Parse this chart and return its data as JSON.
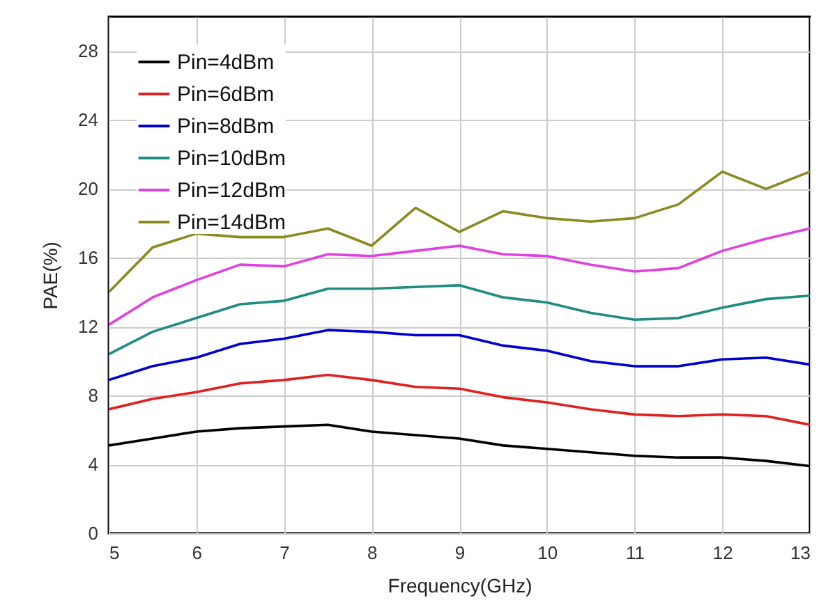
{
  "chart_data": {
    "type": "line",
    "xlabel": "Frequency(GHz)",
    "ylabel": "PAE(%)",
    "x": [
      5,
      5.5,
      6,
      6.5,
      7,
      7.5,
      8,
      8.5,
      9,
      9.5,
      10,
      10.5,
      11,
      11.5,
      12,
      12.5,
      13
    ],
    "series": [
      {
        "name": "Pin=4dBm",
        "color": "#000000",
        "values": [
          5.1,
          5.5,
          5.9,
          6.1,
          6.2,
          6.3,
          5.9,
          5.7,
          5.5,
          5.1,
          4.9,
          4.7,
          4.5,
          4.4,
          4.4,
          4.2,
          3.9
        ]
      },
      {
        "name": "Pin=6dBm",
        "color": "#e02020",
        "values": [
          7.2,
          7.8,
          8.2,
          8.7,
          8.9,
          9.2,
          8.9,
          8.5,
          8.4,
          7.9,
          7.6,
          7.2,
          6.9,
          6.8,
          6.9,
          6.8,
          6.3
        ]
      },
      {
        "name": "Pin=8dBm",
        "color": "#0000d0",
        "values": [
          8.9,
          9.7,
          10.2,
          11.0,
          11.3,
          11.8,
          11.7,
          11.5,
          11.5,
          10.9,
          10.6,
          10.0,
          9.7,
          9.7,
          10.1,
          10.2,
          9.8
        ]
      },
      {
        "name": "Pin=10dBm",
        "color": "#1e8c80",
        "values": [
          10.4,
          11.7,
          12.5,
          13.3,
          13.5,
          14.2,
          14.2,
          14.3,
          14.4,
          13.7,
          13.4,
          12.8,
          12.4,
          12.5,
          13.1,
          13.6,
          13.8
        ]
      },
      {
        "name": "Pin=12dBm",
        "color": "#e040e0",
        "values": [
          12.1,
          13.7,
          14.7,
          15.6,
          15.5,
          16.2,
          16.1,
          16.4,
          16.7,
          16.2,
          16.1,
          15.6,
          15.2,
          15.4,
          16.4,
          17.1,
          17.7
        ]
      },
      {
        "name": "Pin=14dBm",
        "color": "#8a8a20",
        "values": [
          14.0,
          16.6,
          17.4,
          17.2,
          17.2,
          17.7,
          16.7,
          18.9,
          17.5,
          18.7,
          18.3,
          18.1,
          18.3,
          19.1,
          21.0,
          20.0,
          21.0
        ]
      }
    ],
    "xlim": [
      5,
      13
    ],
    "xticks": [
      5,
      6,
      7,
      8,
      9,
      10,
      11,
      12,
      13
    ],
    "ylim": [
      0,
      30
    ],
    "yticks": [
      0,
      4,
      8,
      12,
      16,
      20,
      24,
      28
    ],
    "grid": true,
    "legend": "top left",
    "marker": "none",
    "line_style": "solid"
  }
}
